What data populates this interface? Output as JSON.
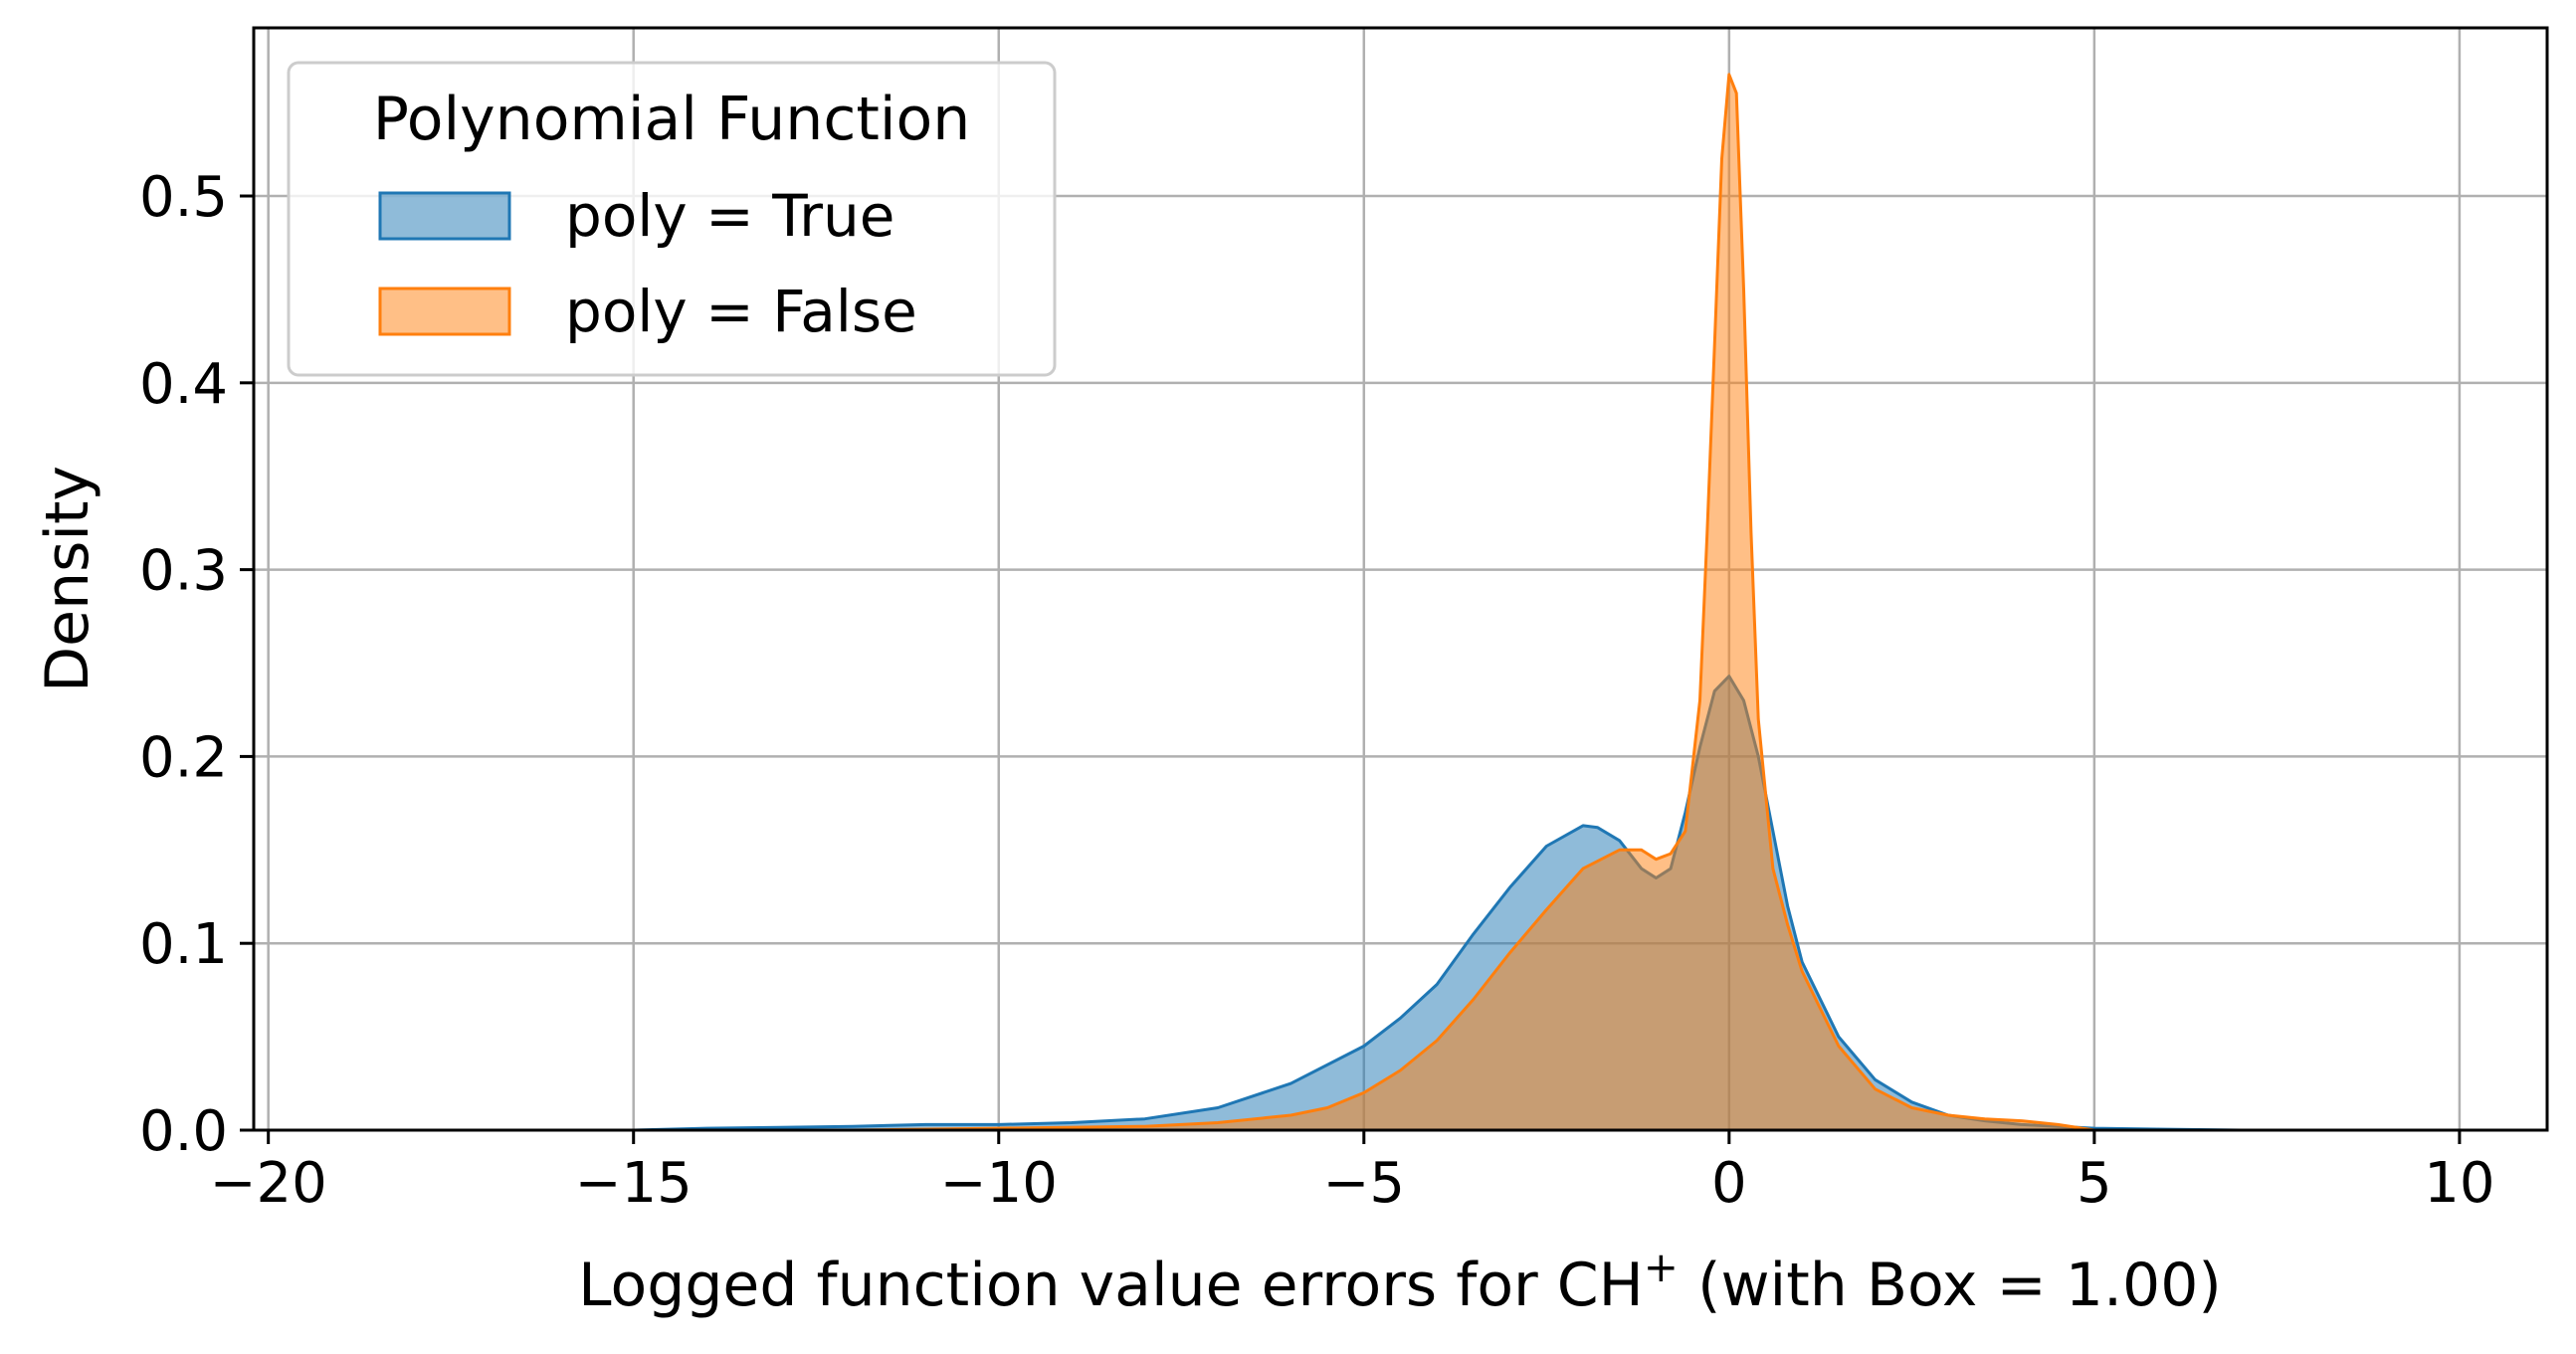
{
  "chart_data": {
    "type": "area",
    "title": "",
    "xlabel_main": "Logged function value errors for CH",
    "xlabel_sup": "+",
    "xlabel_tail": " (with Box = 1.00)",
    "ylabel": "Density",
    "xlim": [
      -20.2,
      11.2
    ],
    "ylim": [
      0,
      0.59
    ],
    "x_ticks": [
      -20,
      -15,
      -10,
      -5,
      0,
      5,
      10
    ],
    "x_tick_labels": [
      "−20",
      "−15",
      "−10",
      "−5",
      "0",
      "5",
      "10"
    ],
    "y_ticks": [
      0.0,
      0.1,
      0.2,
      0.3,
      0.4,
      0.5
    ],
    "y_tick_labels": [
      "0.0",
      "0.1",
      "0.2",
      "0.3",
      "0.4",
      "0.5"
    ],
    "grid": true,
    "legend": {
      "title": "Polynomial Function",
      "placement": "top-left",
      "entries": [
        "poly = True",
        "poly = False"
      ]
    },
    "colors": {
      "poly_true_fill": "#1f77b4",
      "poly_true_line": "#1f77b4",
      "poly_false_fill": "#ff7f0e",
      "poly_false_line": "#ff7f0e",
      "grid": "#b0b0b0"
    },
    "series": [
      {
        "name": "poly = True",
        "x": [
          -15,
          -14,
          -13,
          -12,
          -11,
          -10,
          -9,
          -8,
          -7,
          -6,
          -5,
          -4.5,
          -4,
          -3.5,
          -3,
          -2.5,
          -2,
          -1.8,
          -1.5,
          -1.2,
          -1,
          -0.8,
          -0.6,
          -0.4,
          -0.2,
          0,
          0.2,
          0.4,
          0.6,
          0.8,
          1,
          1.5,
          2,
          2.5,
          3,
          3.5,
          4,
          4.5,
          5,
          6,
          7
        ],
        "y": [
          0,
          0.001,
          0.0015,
          0.002,
          0.003,
          0.003,
          0.004,
          0.006,
          0.012,
          0.025,
          0.045,
          0.06,
          0.078,
          0.105,
          0.13,
          0.152,
          0.163,
          0.162,
          0.155,
          0.14,
          0.135,
          0.14,
          0.17,
          0.205,
          0.235,
          0.243,
          0.23,
          0.2,
          0.16,
          0.12,
          0.09,
          0.05,
          0.027,
          0.015,
          0.008,
          0.005,
          0.003,
          0.002,
          0.001,
          0.0005,
          0
        ]
      },
      {
        "name": "poly = False",
        "x": [
          -12,
          -10,
          -8,
          -7,
          -6,
          -5.5,
          -5,
          -4.5,
          -4,
          -3.5,
          -3,
          -2.5,
          -2,
          -1.5,
          -1.2,
          -1,
          -0.8,
          -0.6,
          -0.4,
          -0.3,
          -0.2,
          -0.1,
          0,
          0.1,
          0.2,
          0.3,
          0.4,
          0.6,
          0.8,
          1,
          1.5,
          2,
          2.5,
          3,
          3.5,
          4,
          4.5,
          5
        ],
        "y": [
          0,
          0.001,
          0.002,
          0.004,
          0.008,
          0.012,
          0.02,
          0.032,
          0.048,
          0.07,
          0.095,
          0.118,
          0.14,
          0.15,
          0.15,
          0.145,
          0.148,
          0.16,
          0.23,
          0.32,
          0.42,
          0.52,
          0.565,
          0.555,
          0.45,
          0.32,
          0.22,
          0.14,
          0.11,
          0.085,
          0.045,
          0.022,
          0.012,
          0.008,
          0.006,
          0.005,
          0.003,
          0
        ]
      }
    ]
  }
}
